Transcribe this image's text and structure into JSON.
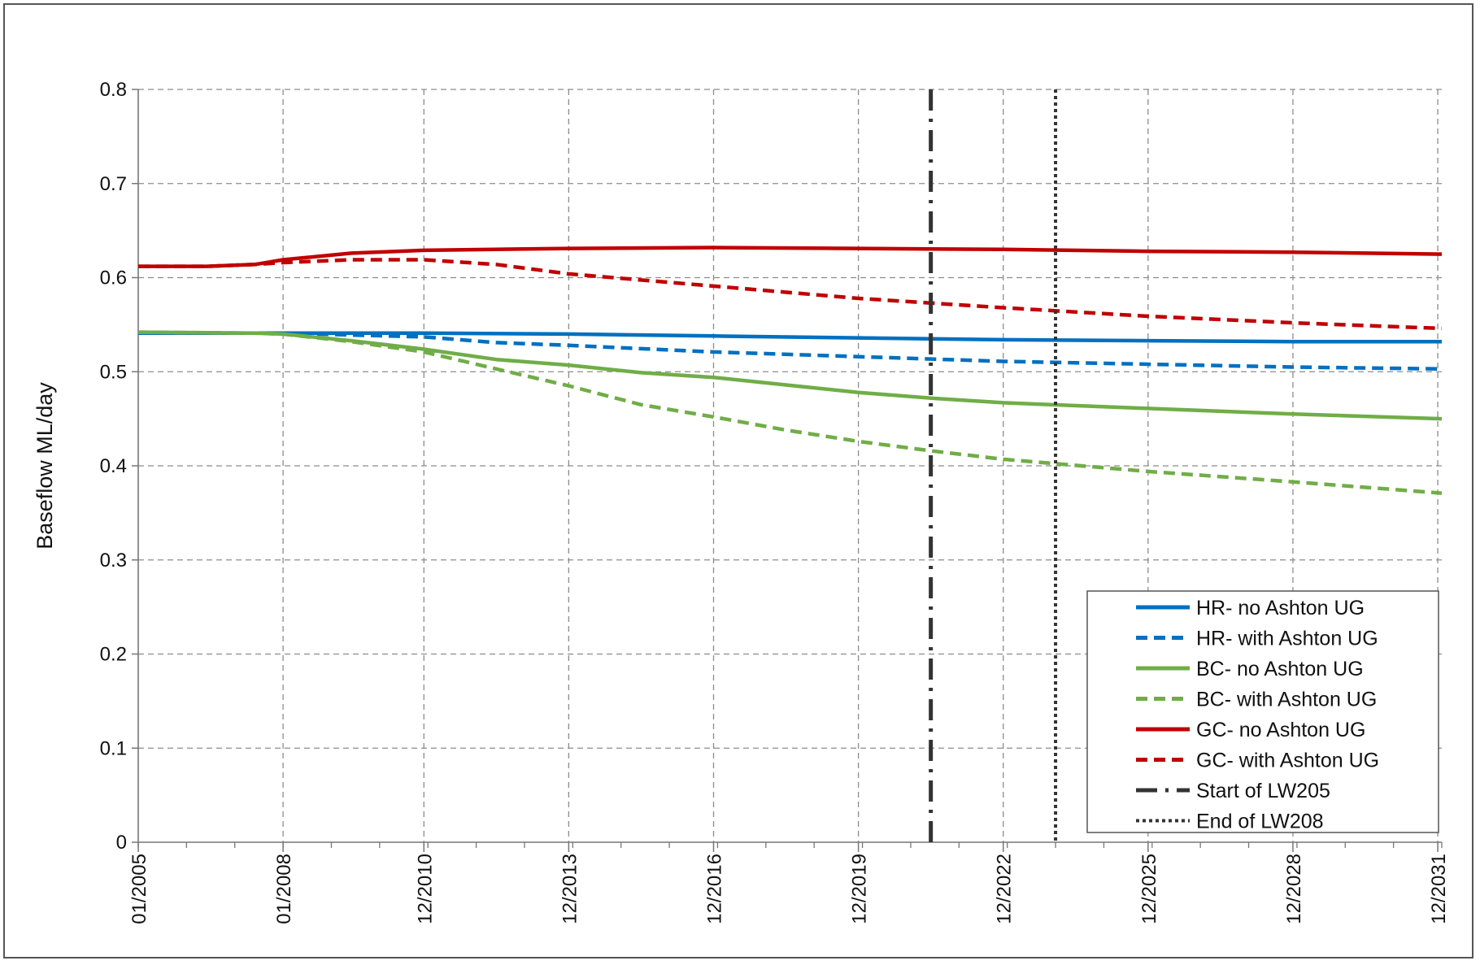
{
  "chart_data": {
    "type": "line",
    "title": "",
    "xlabel": "",
    "ylabel": "Baseflow ML/day",
    "ylim": [
      0,
      0.8
    ],
    "yticks": [
      "0",
      "0.1",
      "0.2",
      "0.3",
      "0.4",
      "0.5",
      "0.6",
      "0.7",
      "0.8"
    ],
    "xlim": [
      "2005-01",
      "2032-01"
    ],
    "xticks": [
      {
        "label": "01/2005",
        "date": "2005-01"
      },
      {
        "label": "01/2008",
        "date": "2008-01"
      },
      {
        "label": "12/2010",
        "date": "2010-12"
      },
      {
        "label": "12/2013",
        "date": "2013-12"
      },
      {
        "label": "12/2016",
        "date": "2016-12"
      },
      {
        "label": "12/2019",
        "date": "2019-12"
      },
      {
        "label": "12/2022",
        "date": "2022-12"
      },
      {
        "label": "12/2025",
        "date": "2025-12"
      },
      {
        "label": "12/2028",
        "date": "2028-12"
      },
      {
        "label": "12/2031",
        "date": "2031-12"
      }
    ],
    "grid": true,
    "legend_position": "bottom-right",
    "series": [
      {
        "name": "HR- no Ashton UG",
        "color": "#0070C0",
        "dash": "solid",
        "points": [
          [
            "2005-01",
            0.541
          ],
          [
            "2008-01",
            0.541
          ],
          [
            "2010-12",
            0.541
          ],
          [
            "2013-12",
            0.54
          ],
          [
            "2016-12",
            0.538
          ],
          [
            "2019-12",
            0.536
          ],
          [
            "2022-12",
            0.534
          ],
          [
            "2025-12",
            0.533
          ],
          [
            "2028-12",
            0.532
          ],
          [
            "2032-01",
            0.532
          ]
        ]
      },
      {
        "name": "HR- with Ashton UG",
        "color": "#0070C0",
        "dash": "dashed",
        "points": [
          [
            "2005-01",
            0.541
          ],
          [
            "2008-01",
            0.541
          ],
          [
            "2010-12",
            0.537
          ],
          [
            "2012-06",
            0.531
          ],
          [
            "2013-12",
            0.528
          ],
          [
            "2016-12",
            0.521
          ],
          [
            "2019-12",
            0.516
          ],
          [
            "2022-12",
            0.511
          ],
          [
            "2025-12",
            0.508
          ],
          [
            "2028-12",
            0.505
          ],
          [
            "2032-01",
            0.503
          ]
        ]
      },
      {
        "name": "BC- no Ashton UG",
        "color": "#70AD47",
        "dash": "solid",
        "points": [
          [
            "2005-01",
            0.542
          ],
          [
            "2007-06",
            0.541
          ],
          [
            "2008-01",
            0.54
          ],
          [
            "2009-06",
            0.533
          ],
          [
            "2010-12",
            0.524
          ],
          [
            "2012-06",
            0.513
          ],
          [
            "2013-12",
            0.507
          ],
          [
            "2015-06",
            0.499
          ],
          [
            "2016-12",
            0.494
          ],
          [
            "2018-06",
            0.486
          ],
          [
            "2019-12",
            0.478
          ],
          [
            "2021-06",
            0.472
          ],
          [
            "2022-12",
            0.467
          ],
          [
            "2025-12",
            0.461
          ],
          [
            "2028-12",
            0.455
          ],
          [
            "2032-01",
            0.45
          ]
        ]
      },
      {
        "name": "BC- with Ashton UG",
        "color": "#70AD47",
        "dash": "dashed",
        "points": [
          [
            "2005-01",
            0.542
          ],
          [
            "2007-06",
            0.541
          ],
          [
            "2008-01",
            0.54
          ],
          [
            "2009-06",
            0.532
          ],
          [
            "2010-12",
            0.521
          ],
          [
            "2012-06",
            0.503
          ],
          [
            "2013-12",
            0.485
          ],
          [
            "2015-06",
            0.465
          ],
          [
            "2016-12",
            0.452
          ],
          [
            "2018-06",
            0.438
          ],
          [
            "2019-12",
            0.426
          ],
          [
            "2021-06",
            0.416
          ],
          [
            "2022-12",
            0.407
          ],
          [
            "2025-12",
            0.394
          ],
          [
            "2028-12",
            0.383
          ],
          [
            "2032-01",
            0.371
          ]
        ]
      },
      {
        "name": "GC- no Ashton UG",
        "color": "#C00000",
        "dash": "solid",
        "points": [
          [
            "2005-01",
            0.612
          ],
          [
            "2006-06",
            0.612
          ],
          [
            "2007-06",
            0.614
          ],
          [
            "2008-01",
            0.619
          ],
          [
            "2009-06",
            0.626
          ],
          [
            "2010-12",
            0.629
          ],
          [
            "2013-12",
            0.631
          ],
          [
            "2016-12",
            0.632
          ],
          [
            "2019-12",
            0.631
          ],
          [
            "2022-12",
            0.63
          ],
          [
            "2025-12",
            0.628
          ],
          [
            "2028-12",
            0.627
          ],
          [
            "2032-01",
            0.625
          ]
        ]
      },
      {
        "name": "GC- with Ashton UG",
        "color": "#C00000",
        "dash": "dashed",
        "points": [
          [
            "2005-01",
            0.612
          ],
          [
            "2006-06",
            0.612
          ],
          [
            "2007-06",
            0.614
          ],
          [
            "2008-01",
            0.616
          ],
          [
            "2009-06",
            0.619
          ],
          [
            "2010-12",
            0.619
          ],
          [
            "2012-06",
            0.614
          ],
          [
            "2013-12",
            0.604
          ],
          [
            "2016-12",
            0.591
          ],
          [
            "2019-12",
            0.578
          ],
          [
            "2022-12",
            0.568
          ],
          [
            "2025-12",
            0.559
          ],
          [
            "2028-12",
            0.552
          ],
          [
            "2032-01",
            0.546
          ]
        ]
      },
      {
        "name": "Start of LW205",
        "color": "#333333",
        "dash": "dashdot",
        "vertical": true,
        "x": "2021-06"
      },
      {
        "name": "End of LW208",
        "color": "#333333",
        "dash": "dotted",
        "vertical": true,
        "x": "2024-01"
      }
    ]
  }
}
